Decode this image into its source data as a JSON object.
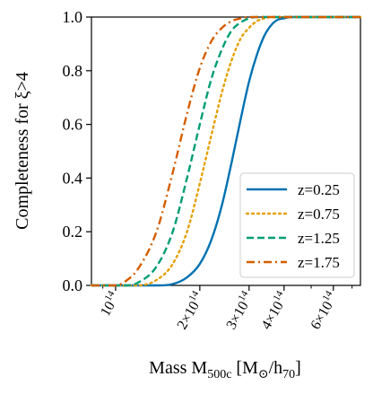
{
  "chart_data": {
    "type": "line",
    "xscale": "log",
    "xlabel": {
      "main": "Mass M",
      "sub": "500c",
      "unit_open": "[M",
      "sun": "⊙",
      "unit_mid": "/h",
      "unit_sub": "70",
      "unit_close": "]"
    },
    "ylabel": "Completeness for ξ>4",
    "xlim": [
      82000000000000.0,
      750000000000000.0
    ],
    "ylim": [
      0,
      1.0
    ],
    "yticks": [
      0.0,
      0.2,
      0.4,
      0.6,
      0.8,
      1.0
    ],
    "ytick_labels": [
      "0.0",
      "0.2",
      "0.4",
      "0.6",
      "0.8",
      "1.0"
    ],
    "xticks_major": [
      {
        "value": 100000000000000.0,
        "mant": "",
        "exp": "14"
      },
      {
        "value": 200000000000000.0,
        "mant": "2×",
        "exp": "14"
      },
      {
        "value": 300000000000000.0,
        "mant": "3×",
        "exp": "14"
      },
      {
        "value": 400000000000000.0,
        "mant": "4×",
        "exp": "14"
      },
      {
        "value": 600000000000000.0,
        "mant": "6×",
        "exp": "14"
      }
    ],
    "xticks_minor": [
      90000000000000.0,
      500000000000000.0,
      700000000000000.0
    ],
    "legend_position": "lower right",
    "series": [
      {
        "name": "z=0.25",
        "color": "#0072B2",
        "style": "solid",
        "x": [
          140000000000000.0,
          160000000000000.0,
          180000000000000.0,
          200000000000000.0,
          220000000000000.0,
          240000000000000.0,
          260000000000000.0,
          280000000000000.0,
          300000000000000.0,
          320000000000000.0,
          340000000000000.0,
          360000000000000.0,
          380000000000000.0,
          400000000000000.0,
          420000000000000.0,
          440000000000000.0,
          460000000000000.0,
          750000000000000.0
        ],
        "y": [
          0.0,
          0.005,
          0.03,
          0.08,
          0.17,
          0.3,
          0.46,
          0.62,
          0.76,
          0.86,
          0.93,
          0.97,
          0.99,
          0.995,
          1.0,
          1.0,
          1.0,
          1.0
        ]
      },
      {
        "name": "z=0.75",
        "color": "#E69F00",
        "style": "dotted",
        "x": [
          120000000000000.0,
          140000000000000.0,
          160000000000000.0,
          180000000000000.0,
          200000000000000.0,
          220000000000000.0,
          240000000000000.0,
          260000000000000.0,
          280000000000000.0,
          300000000000000.0,
          320000000000000.0,
          340000000000000.0,
          360000000000000.0,
          380000000000000.0,
          750000000000000.0
        ],
        "y": [
          0.0,
          0.02,
          0.08,
          0.2,
          0.38,
          0.56,
          0.72,
          0.84,
          0.92,
          0.96,
          0.985,
          0.995,
          1.0,
          1.0,
          1.0
        ]
      },
      {
        "name": "z=1.25",
        "color": "#009E73",
        "style": "dashed",
        "x": [
          110000000000000.0,
          120000000000000.0,
          140000000000000.0,
          160000000000000.0,
          180000000000000.0,
          200000000000000.0,
          220000000000000.0,
          240000000000000.0,
          260000000000000.0,
          280000000000000.0,
          300000000000000.0,
          320000000000000.0,
          340000000000000.0,
          750000000000000.0
        ],
        "y": [
          0.0,
          0.01,
          0.07,
          0.2,
          0.4,
          0.6,
          0.77,
          0.88,
          0.95,
          0.98,
          0.995,
          1.0,
          1.0,
          1.0
        ]
      },
      {
        "name": "z=1.75",
        "color": "#D55E00",
        "style": "dashdot",
        "x": [
          100000000000000.0,
          110000000000000.0,
          120000000000000.0,
          140000000000000.0,
          160000000000000.0,
          180000000000000.0,
          200000000000000.0,
          220000000000000.0,
          240000000000000.0,
          260000000000000.0,
          280000000000000.0,
          300000000000000.0,
          750000000000000.0
        ],
        "y": [
          0.0,
          0.02,
          0.06,
          0.2,
          0.42,
          0.64,
          0.81,
          0.91,
          0.96,
          0.985,
          0.995,
          1.0,
          1.0
        ]
      }
    ]
  }
}
